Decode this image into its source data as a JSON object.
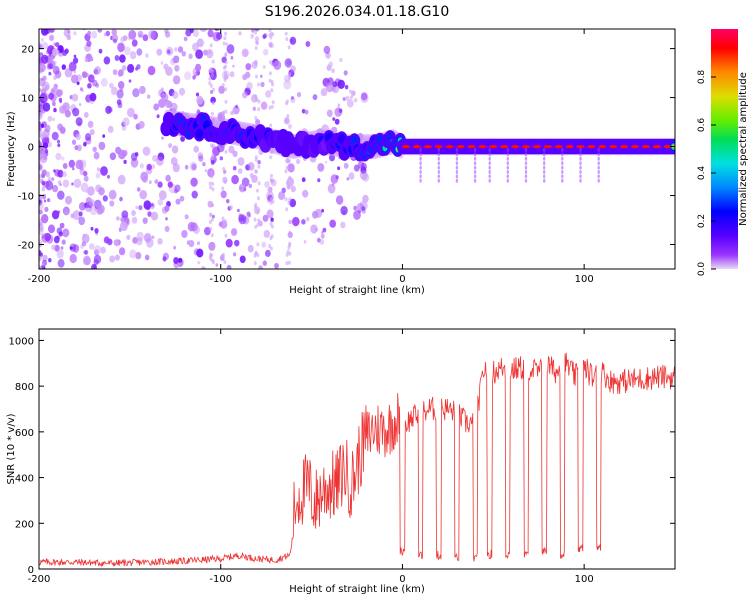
{
  "title": "S196.2026.034.01.18.G10",
  "chart_data": [
    {
      "type": "heatmap",
      "name": "spectrogram",
      "xlabel": "Height of straight line (km)",
      "ylabel": "Frequency (Hz)",
      "xlim": [
        -200,
        150
      ],
      "ylim": [
        -25,
        24
      ],
      "xticks": [
        -200,
        -100,
        0,
        100
      ],
      "yticks": [
        -20,
        -10,
        0,
        10,
        20
      ],
      "colorbar": {
        "label": "Normalized spectral amplitude",
        "range": [
          0,
          1
        ],
        "ticks": [
          0.0,
          0.2,
          0.4,
          0.6,
          0.8
        ],
        "colors": [
          "#e8d8f5",
          "#9a33ff",
          "#5500ff",
          "#0000ff",
          "#0088ff",
          "#00e0e0",
          "#00dd55",
          "#66ee00",
          "#dddd00",
          "#ff8800",
          "#ff0000",
          "#ff0066"
        ]
      },
      "ridge": {
        "description": "Main signal ridge near 0 Hz",
        "points": [
          {
            "x": -130,
            "y": 5,
            "amp": 0.3
          },
          {
            "x": -110,
            "y": 4,
            "amp": 0.32
          },
          {
            "x": -95,
            "y": 3,
            "amp": 0.3
          },
          {
            "x": -80,
            "y": 2,
            "amp": 0.25
          },
          {
            "x": -60,
            "y": 0,
            "amp": 0.22
          },
          {
            "x": -45,
            "y": 1,
            "amp": 0.22
          },
          {
            "x": -30,
            "y": 0,
            "amp": 0.3
          },
          {
            "x": -15,
            "y": 0,
            "amp": 0.45
          },
          {
            "x": -5,
            "y": 1,
            "amp": 0.55
          },
          {
            "x": 0,
            "y": 0,
            "amp": 0.75
          },
          {
            "x": 20,
            "y": 0,
            "amp": 0.85
          },
          {
            "x": 50,
            "y": 0,
            "amp": 0.88
          },
          {
            "x": 80,
            "y": 0,
            "amp": 0.88
          },
          {
            "x": 100,
            "y": 0,
            "amp": 0.85
          },
          {
            "x": 120,
            "y": 0,
            "amp": 0.92
          },
          {
            "x": 150,
            "y": 0,
            "amp": 0.92
          }
        ]
      }
    },
    {
      "type": "line",
      "name": "snr",
      "xlabel": "Height of straight line (km)",
      "ylabel": "SNR (10 * v/v)",
      "xlim": [
        -200,
        150
      ],
      "ylim": [
        0,
        1050
      ],
      "xticks": [
        -200,
        -100,
        0,
        100
      ],
      "yticks": [
        0,
        200,
        400,
        600,
        800,
        1000
      ],
      "color": "#ee3333",
      "series": [
        {
          "name": "SNR",
          "x": [
            -200,
            -180,
            -160,
            -140,
            -120,
            -100,
            -90,
            -80,
            -70,
            -62,
            -58,
            -52,
            -48,
            -44,
            -40,
            -36,
            -32,
            -28,
            -24,
            -20,
            -16,
            -12,
            -8,
            -4,
            0,
            5,
            10,
            15,
            20,
            25,
            30,
            35,
            40,
            45,
            50,
            55,
            60,
            65,
            70,
            75,
            80,
            85,
            90,
            95,
            100,
            105,
            110,
            115,
            120,
            130,
            140,
            150
          ],
          "y": [
            30,
            30,
            25,
            30,
            35,
            45,
            60,
            45,
            40,
            60,
            250,
            300,
            220,
            280,
            300,
            300,
            380,
            300,
            420,
            520,
            560,
            560,
            560,
            600,
            620,
            660,
            680,
            700,
            700,
            700,
            680,
            640,
            640,
            880,
            860,
            880,
            870,
            880,
            880,
            860,
            890,
            860,
            900,
            840,
            880,
            840,
            860,
            820,
            820,
            830,
            840,
            840
          ]
        }
      ],
      "dropouts": [
        {
          "x": 0,
          "y": 60
        },
        {
          "x": 10,
          "y": 40
        },
        {
          "x": 20,
          "y": 40
        },
        {
          "x": 30,
          "y": 30
        },
        {
          "x": 40,
          "y": 30
        },
        {
          "x": 48,
          "y": 45
        },
        {
          "x": 58,
          "y": 45
        },
        {
          "x": 68,
          "y": 40
        },
        {
          "x": 78,
          "y": 60
        },
        {
          "x": 88,
          "y": 45
        },
        {
          "x": 98,
          "y": 70
        },
        {
          "x": 108,
          "y": 80
        }
      ]
    }
  ]
}
